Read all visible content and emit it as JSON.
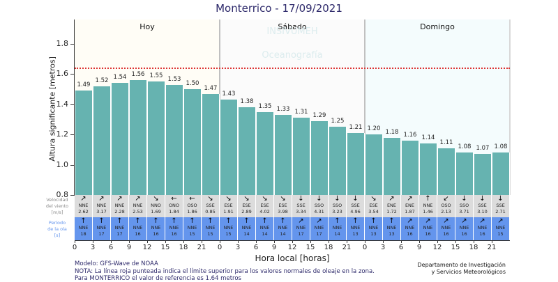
{
  "title": "Monterrico  -  17/09/2021",
  "chart_data": {
    "type": "bar",
    "title": "Monterrico  -  17/09/2021",
    "xlabel": "Hora local [horas]",
    "ylabel": "Altura significante [metros]",
    "ylim": [
      0.8,
      1.95
    ],
    "yticks": [
      "0.8",
      "1.0",
      "1.2",
      "1.4",
      "1.6",
      "1.8"
    ],
    "days": [
      "Hoy",
      "Sábado",
      "Domingo"
    ],
    "categories": [
      "0",
      "3",
      "6",
      "9",
      "12",
      "15",
      "18",
      "21",
      "0",
      "3",
      "6",
      "9",
      "12",
      "15",
      "18",
      "21",
      "0",
      "3",
      "6",
      "9",
      "12",
      "15",
      "18",
      "21"
    ],
    "values": [
      1.49,
      1.52,
      1.54,
      1.56,
      1.55,
      1.53,
      1.5,
      1.47,
      1.43,
      1.38,
      1.35,
      1.33,
      1.31,
      1.29,
      1.25,
      1.21,
      1.2,
      1.18,
      1.16,
      1.14,
      1.11,
      1.08,
      1.07,
      1.08
    ],
    "value_labels": [
      "1.49",
      "1.52",
      "1.54",
      "1.56",
      "1.55",
      "1.53",
      "1.50",
      "1.47",
      "1.43",
      "1.38",
      "1.35",
      "1.33",
      "1.31",
      "1.29",
      "1.25",
      "1.21",
      "1.20",
      "1.18",
      "1.16",
      "1.14",
      "1.11",
      "1.08",
      "1.07",
      "1.08"
    ],
    "reference_line": {
      "value": 1.64,
      "style": "dotted",
      "color": "#dd3333"
    },
    "bar_color": "#66b3b0",
    "wind": {
      "label": [
        "Velocidad",
        "del viento",
        "[m/s]"
      ],
      "directions": [
        "NNE",
        "NNE",
        "NNE",
        "NNE",
        "NNO",
        "ONO",
        "OSO",
        "SSE",
        "ESE",
        "ESE",
        "ESE",
        "ESE",
        "SSE",
        "SSO",
        "SSO",
        "SSE",
        "ESE",
        "ENE",
        "ENE",
        "NNE",
        "OSO",
        "SSO",
        "SSE",
        "SSE"
      ],
      "arrows": [
        "↗",
        "↗",
        "↗",
        "↗",
        "↘",
        "←",
        "←",
        "↘",
        "↘",
        "↘",
        "↘",
        "↘",
        "↓",
        "↓",
        "↓",
        "↓",
        "↘",
        "↗",
        "↗",
        "↑",
        "↙",
        "↓",
        "↓",
        "↓"
      ],
      "speeds": [
        "2.62",
        "3.17",
        "2.28",
        "2.53",
        "1.69",
        "1.84",
        "1.86",
        "0.85",
        "1.91",
        "2.89",
        "4.02",
        "3.98",
        "3.34",
        "4.31",
        "3.23",
        "4.96",
        "3.54",
        "1.72",
        "1.87",
        "1.46",
        "2.13",
        "3.71",
        "3.10",
        "2.71"
      ],
      "bg_color": "#dcdcdc"
    },
    "wave": {
      "label": [
        "Período",
        "de la ola",
        "[s]"
      ],
      "directions": [
        "NNE",
        "NNE",
        "NNE",
        "NNE",
        "NNE",
        "NNE",
        "NNE",
        "NNE",
        "NNE",
        "NNE",
        "NNE",
        "NNE",
        "NNE",
        "NNE",
        "NNE",
        "NNE",
        "NNE",
        "NNE",
        "NNE",
        "NNE",
        "NNE",
        "NNE",
        "NNE",
        "NNE"
      ],
      "arrows": [
        "↑",
        "↑",
        "↑",
        "↑",
        "↑",
        "↑",
        "↑",
        "↑",
        "↑",
        "↑",
        "↑",
        "↑",
        "↗",
        "↗",
        "↑",
        "↑",
        "↑",
        "↑",
        "↗",
        "↗",
        "↗",
        "↗",
        "↗",
        "↗"
      ],
      "periods": [
        "18",
        "17",
        "17",
        "16",
        "16",
        "16",
        "15",
        "15",
        "15",
        "14",
        "14",
        "14",
        "17",
        "17",
        "14",
        "13",
        "13",
        "13",
        "16",
        "16",
        "16",
        "16",
        "16",
        "15"
      ],
      "bg_color": "#6495ed"
    }
  },
  "watermark": {
    "line1": "INSIVUMEH",
    "line2": "Oceanografía"
  },
  "footer": {
    "model": "Modelo: GFS-Wave de NOAA",
    "note": "NOTA: La línea roja punteada indica el límite superior para los valores normales de oleaje en la zona.",
    "reference": "Para MONTERRICO el valor de referencia es 1.64 metros",
    "dept_line1": "Departamento de Investigación",
    "dept_line2": "y Servicios Meteorológicos"
  }
}
